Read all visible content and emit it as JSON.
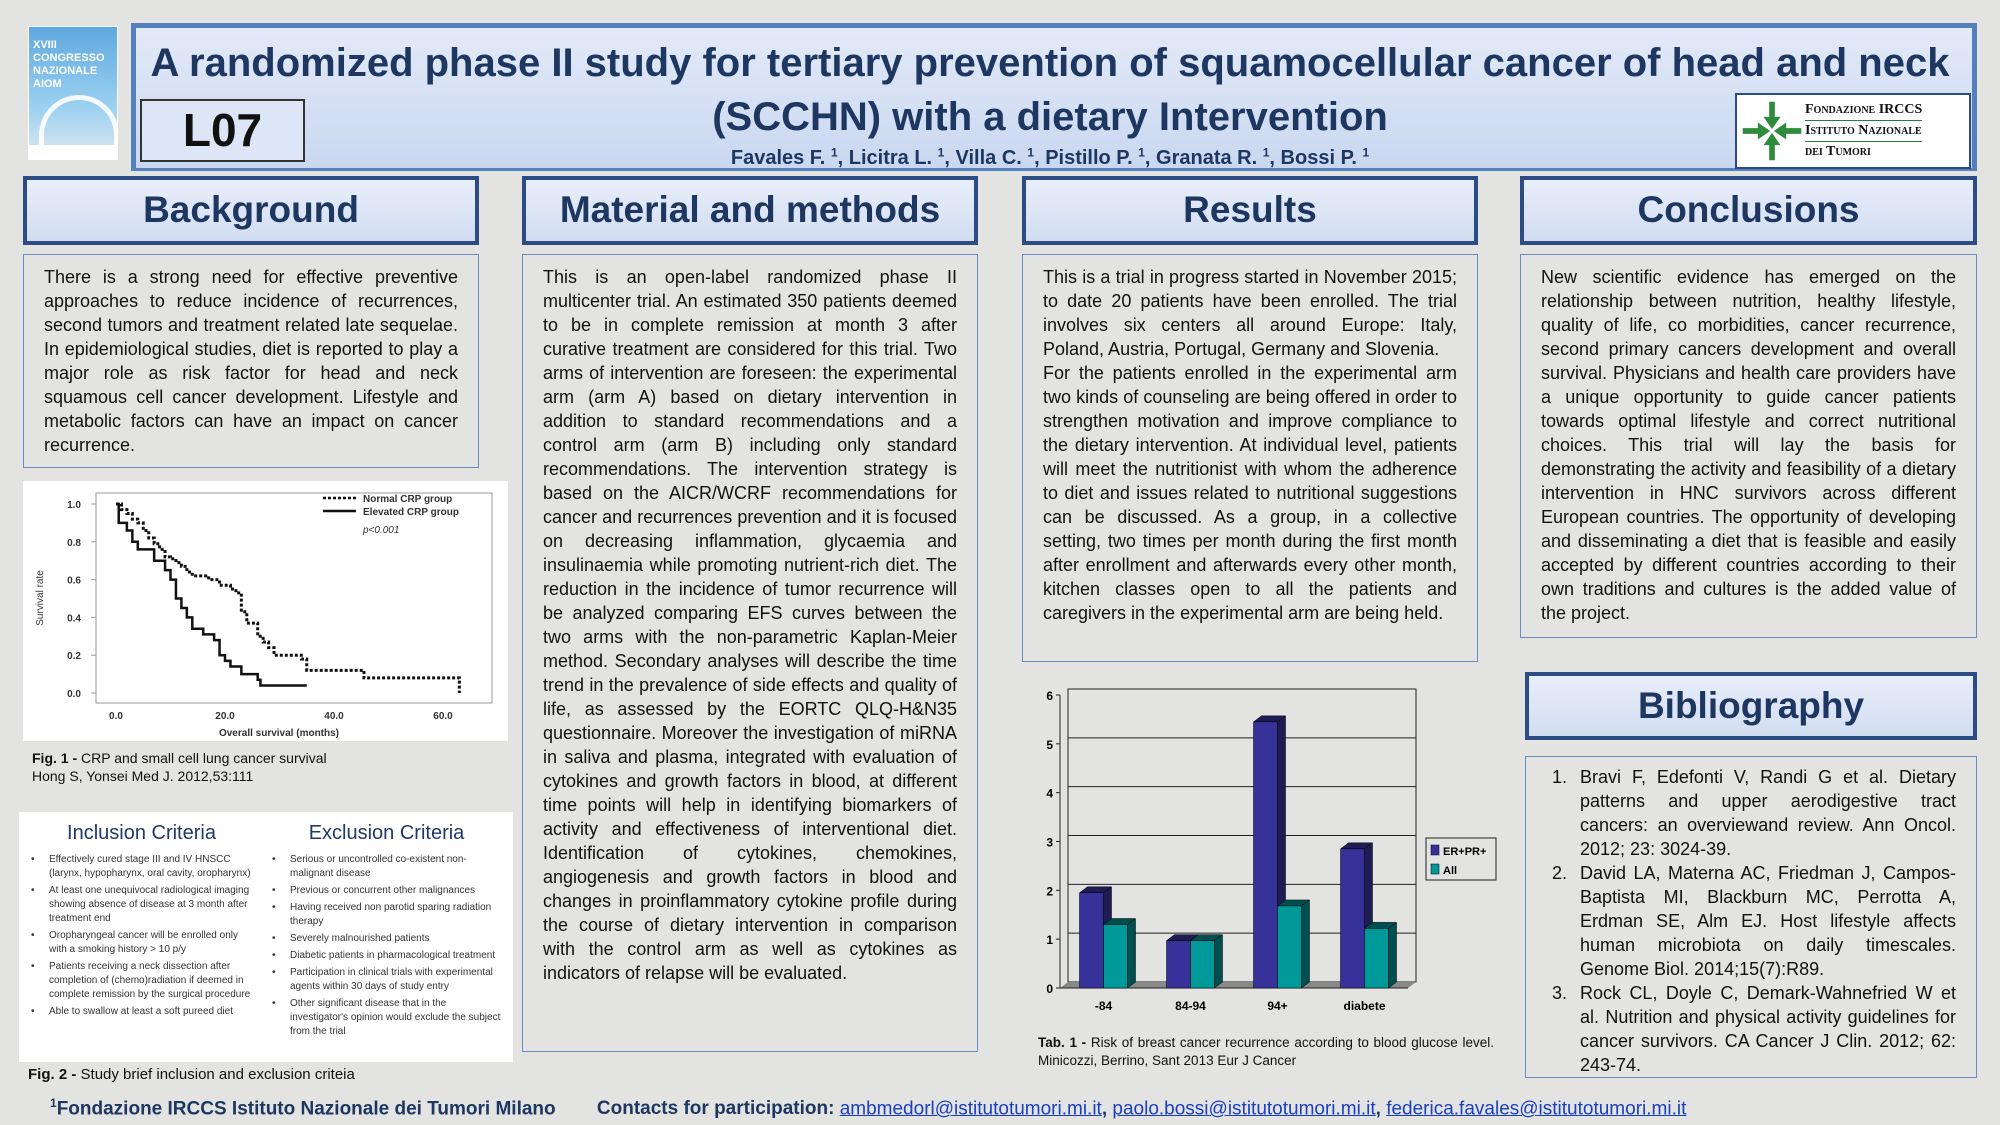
{
  "header": {
    "title_line1": "A randomized phase II study for tertiary prevention of squamocellular cancer of head and neck",
    "title_line2": "(SCCHN) with a dietary Intervention",
    "authors": [
      {
        "name": "Favales F.",
        "aff": "1"
      },
      {
        "name": "Licitra L.",
        "aff": "1"
      },
      {
        "name": "Villa C.",
        "aff": "1"
      },
      {
        "name": "Pistillo P.",
        "aff": "1"
      },
      {
        "name": "Granata R.",
        "aff": "1"
      },
      {
        "name": "Bossi P.",
        "aff": "1"
      }
    ],
    "poster_code": "L07",
    "congress_logo_text": "XVIII CONGRESSO NAZIONALE AIOM",
    "institute_logo": [
      "Fondazione IRCCS",
      "Istituto Nazionale",
      "dei Tumori"
    ]
  },
  "sections": {
    "background": "Background",
    "methods": "Material and methods",
    "results": "Results",
    "conclusions": "Conclusions",
    "bibliography": "Bibliography"
  },
  "background_text": "There is a strong need for effective preventive approaches to reduce incidence of recurrences, second tumors and treatment related late sequelae. In epidemiological studies, diet is reported to play a major role as risk factor for head and neck squamous cell cancer development. Lifestyle and metabolic factors can have an impact on cancer recurrence.",
  "methods_text": "This is an open-label randomized phase II multicenter trial. An estimated 350 patients deemed to be in complete remission at month 3 after curative treatment are considered for this trial. Two arms of intervention are foreseen: the experimental arm (arm A) based on dietary intervention in addition to standard recommendations and a control arm (arm B) including only standard recommendations. The intervention strategy is based on the AICR/WCRF recommendations for cancer and recurrences prevention and it is focused on decreasing inflammation, glycaemia and insulinaemia while promoting nutrient-rich diet. The reduction in the incidence of tumor recurrence will be analyzed comparing EFS curves between the two arms with the non-parametric Kaplan-Meier method. Secondary analyses will describe the time trend in the prevalence of side effects and quality of life, as assessed by the EORTC QLQ-H&N35 questionnaire. Moreover the investigation of miRNA in saliva and plasma, integrated with evaluation of cytokines and growth factors in blood, at different time points will help in identifying biomarkers of activity and effectiveness of interventional diet. Identification of cytokines, chemokines, angiogenesis and growth factors in blood and changes in proinflammatory cytokine profile during the course of dietary intervention in comparison with the control arm as well as cytokines as indicators of relapse will be evaluated.",
  "results_text_1": "This is a trial in progress started in November 2015; to date 20 patients have been enrolled. The trial involves six centers all around Europe: Italy, Poland, Austria, Portugal, Germany and Slovenia.",
  "results_text_2": "For the patients enrolled in the experimental arm two kinds of counseling are being offered in order to strengthen motivation and improve compliance to the dietary intervention. At individual level, patients will meet the nutritionist with whom the adherence to diet and issues related to nutritional suggestions can be discussed. As a group, in a collective setting, two times per month during the first month after enrollment and afterwards every other month, kitchen classes open to all the patients and caregivers in the experimental arm are being held.",
  "conclusions_text": "New scientific evidence has emerged on the relationship between nutrition, healthy lifestyle, quality of life, co morbidities, cancer recurrence, second primary cancers development and overall survival. Physicians and health care providers have a unique opportunity to guide cancer patients towards optimal lifestyle and correct nutritional choices. This trial will lay the basis for demonstrating the activity and feasibility of a dietary intervention in HNC survivors across different European countries. The opportunity of developing and disseminating a diet that is feasible and easily accepted by different countries according to their own traditions and cultures is the added value of the project.",
  "fig1_caption": {
    "label": "Fig. 1 -",
    "text": "CRP and small cell lung cancer survival",
    "source": "Hong S, Yonsei Med J. 2012,53:111"
  },
  "fig2": {
    "caption_label": "Fig. 2 -",
    "caption_text": "Study brief inclusion and exclusion criteia",
    "inclusion_title": "Inclusion Criteria",
    "inclusion": [
      "Effectively cured stage III and IV HNSCC (larynx, hypopharynx, oral cavity, oropharynx)",
      "At least one unequivocal radiological imaging showing absence of disease at 3 month after treatment end",
      "Oropharyngeal cancer will be enrolled only with a smoking history > 10 p/y",
      "Patients receiving a neck dissection after completion of (chemo)radiation if deemed in complete remission by the surgical procedure",
      "Able to swallow at least a soft pureed diet"
    ],
    "exclusion_title": "Exclusion Criteria",
    "exclusion": [
      "Serious or uncontrolled co-existent non-malignant disease",
      "Previous or concurrent other malignances",
      "Having received non parotid sparing radiation therapy",
      "Severely malnourished patients",
      "Diabetic patients in pharmacological treatment",
      "Participation in clinical trials with experimental agents within 30 days of study entry",
      "Other significant disease that in the investigator's opinion would exclude the subject from the trial"
    ]
  },
  "tab1_caption": {
    "label": "Tab. 1 -",
    "text": "Risk of breast cancer recurrence according to blood glucose level. Minicozzi, Berrino, Sant 2013 Eur J Cancer"
  },
  "chart_data": [
    {
      "type": "line",
      "title": "",
      "xlabel": "Overall survival (months)",
      "ylabel": "Survival rate",
      "xlim": [
        0,
        63
      ],
      "ylim": [
        0,
        1
      ],
      "xticks": [
        "0.0",
        "20.0",
        "40.0",
        "60.0"
      ],
      "yticks": [
        "0.0",
        "0.2",
        "0.4",
        "0.6",
        "0.8",
        "1.0"
      ],
      "annotation": "p<0.001",
      "legend": "top-right",
      "step": true,
      "series": [
        {
          "name": "Normal CRP group",
          "style": "dashed",
          "points": [
            [
              0,
              1
            ],
            [
              1,
              0.97
            ],
            [
              2,
              0.95
            ],
            [
              3,
              0.92
            ],
            [
              4,
              0.9
            ],
            [
              5,
              0.86
            ],
            [
              6,
              0.82
            ],
            [
              7,
              0.79
            ],
            [
              8,
              0.76
            ],
            [
              9,
              0.72
            ],
            [
              10,
              0.71
            ],
            [
              11,
              0.69
            ],
            [
              12,
              0.67
            ],
            [
              13,
              0.64
            ],
            [
              14,
              0.62
            ],
            [
              17,
              0.6
            ],
            [
              19,
              0.57
            ],
            [
              21,
              0.55
            ],
            [
              22,
              0.53
            ],
            [
              23,
              0.43
            ],
            [
              24,
              0.37
            ],
            [
              26,
              0.3
            ],
            [
              27,
              0.27
            ],
            [
              28,
              0.24
            ],
            [
              29,
              0.2
            ],
            [
              34,
              0.18
            ],
            [
              35,
              0.12
            ],
            [
              45,
              0.12
            ],
            [
              45.5,
              0.08
            ],
            [
              63,
              0.08
            ],
            [
              63,
              0
            ]
          ]
        },
        {
          "name": "Elevated CRP group",
          "style": "solid",
          "points": [
            [
              0,
              1
            ],
            [
              0.5,
              0.9
            ],
            [
              2,
              0.86
            ],
            [
              3,
              0.8
            ],
            [
              4,
              0.76
            ],
            [
              6,
              0.76
            ],
            [
              7,
              0.7
            ],
            [
              9,
              0.65
            ],
            [
              10,
              0.6
            ],
            [
              11,
              0.5
            ],
            [
              12,
              0.45
            ],
            [
              13,
              0.4
            ],
            [
              14,
              0.34
            ],
            [
              16,
              0.31
            ],
            [
              18,
              0.28
            ],
            [
              19,
              0.2
            ],
            [
              20,
              0.17
            ],
            [
              21,
              0.14
            ],
            [
              23,
              0.1
            ],
            [
              26,
              0.07
            ],
            [
              26.5,
              0.04
            ],
            [
              35,
              0.04
            ]
          ]
        }
      ]
    },
    {
      "type": "bar",
      "title": "",
      "xlabel": "",
      "ylabel": "",
      "categories": [
        "-84",
        "84-94",
        "94+",
        "diabete"
      ],
      "ylim": [
        0,
        6
      ],
      "yticks": [
        "0",
        "1",
        "2",
        "3",
        "4",
        "5",
        "6"
      ],
      "grid": true,
      "legend": "right",
      "series": [
        {
          "name": "ER+PR+",
          "color": "#36329a",
          "values": [
            1.95,
            0.97,
            5.45,
            2.85
          ]
        },
        {
          "name": "All",
          "color": "#00999a",
          "values": [
            1.3,
            0.97,
            1.68,
            1.22
          ]
        }
      ]
    }
  ],
  "bibliography": [
    "Bravi F, Edefonti V, Randi G et al. Dietary patterns and upper aerodigestive tract cancers: an overviewand review. Ann Oncol. 2012; 23: 3024-39.",
    "David LA, Materna AC, Friedman J, Campos-Baptista MI, Blackburn MC, Perrotta A, Erdman SE, Alm EJ. Host lifestyle affects human microbiota on daily timescales. Genome Biol. 2014;15(7):R89.",
    "Rock CL, Doyle C, Demark-Wahnefried W et al. Nutrition and physical activity guidelines for cancer survivors. CA Cancer J Clin. 2012; 62: 243-74."
  ],
  "footer": {
    "affiliation_sup": "1",
    "affiliation": "Fondazione IRCCS Istituto Nazionale dei Tumori Milano",
    "contacts_label": "Contacts for participation:",
    "emails": [
      "ambmedorl@istitutotumori.mi.it",
      "paolo.bossi@istitutotumori.mi.it",
      "federica.favales@istitutotumori.mi.it"
    ]
  }
}
